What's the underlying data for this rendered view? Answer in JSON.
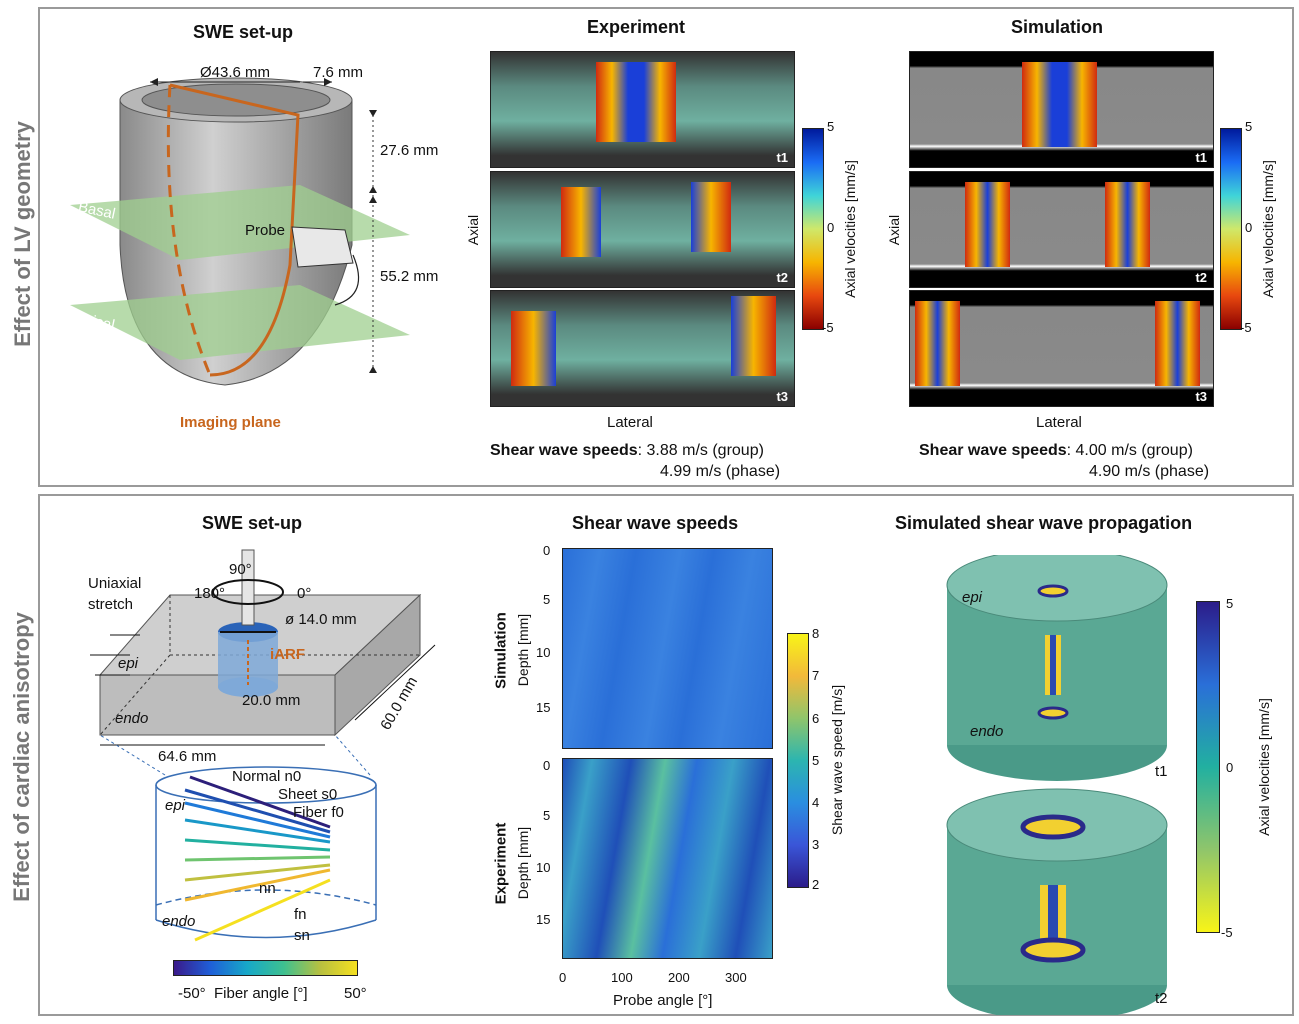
{
  "top": {
    "side_label": "Effect of LV geometry",
    "setup": {
      "title": "SWE set-up",
      "diameter": "Ø43.6 mm",
      "thickness": "7.6 mm",
      "height_top": "27.6 mm",
      "height_mid": "55.2 mm",
      "probe": "Probe",
      "basal": "Basal",
      "apical": "Apical",
      "imaging_plane": "Imaging plane"
    },
    "experiment": {
      "title": "Experiment",
      "axial": "Axial",
      "lateral": "Lateral",
      "times": [
        "t1",
        "t2",
        "t3"
      ],
      "speeds_label": "Shear wave speeds",
      "speed_group": ": 3.88 m/s (group)",
      "speed_phase": "4.99 m/s (phase)"
    },
    "simulation": {
      "title": "Simulation",
      "axial": "Axial",
      "lateral": "Lateral",
      "times": [
        "t1",
        "t2",
        "t3"
      ],
      "speeds_label": "Shear wave speeds",
      "speed_group": ": 4.00 m/s (group)",
      "speed_phase": "4.90 m/s (phase)"
    },
    "colorbar": {
      "label": "Axial velocities [mm/s]",
      "max": "5",
      "mid": "0",
      "min": "-5"
    }
  },
  "bottom": {
    "side_label": "Effect of cardiac anisotropy",
    "setup": {
      "title": "SWE set-up",
      "angle_90": "90°",
      "angle_180": "180°",
      "angle_0": "0°",
      "uniaxial": "Uniaxial",
      "stretch": "stretch",
      "diameter": "ø 14.0 mm",
      "iarf": "iARF",
      "epi": "epi",
      "endo": "endo",
      "depth": "20.0 mm",
      "width": "64.6 mm",
      "length": "60.0 mm",
      "normal": "Normal n0",
      "sheet": "Sheet s0",
      "fiber": "Fiber f0",
      "nn": "nn",
      "fn": "fn",
      "sn": "sn",
      "fiber_min": "-50°",
      "fiber_label": "Fiber angle [°]",
      "fiber_max": "50°"
    },
    "speeds": {
      "title": "Shear wave speeds",
      "sim_label": "Simulation",
      "exp_label": "Experiment",
      "depth_label": "Depth [mm]",
      "x_label": "Probe angle [°]",
      "y_ticks": [
        "0",
        "5",
        "10",
        "15"
      ],
      "x_ticks": [
        "0",
        "100",
        "200",
        "300"
      ],
      "colorbar_label": "Shear wave speed [m/s]",
      "colorbar_ticks": [
        "8",
        "7",
        "6",
        "5",
        "4",
        "3",
        "2"
      ]
    },
    "propagation": {
      "title": "Simulated shear wave propagation",
      "epi": "epi",
      "endo": "endo",
      "t1": "t1",
      "t2": "t2",
      "colorbar_label": "Axial velocities [mm/s]",
      "max": "5",
      "mid": "0",
      "min": "-5"
    }
  },
  "colors": {
    "orange": "#c8661e",
    "green_plane": "#9fcf8f",
    "panel_border": "#9a9a9a"
  }
}
